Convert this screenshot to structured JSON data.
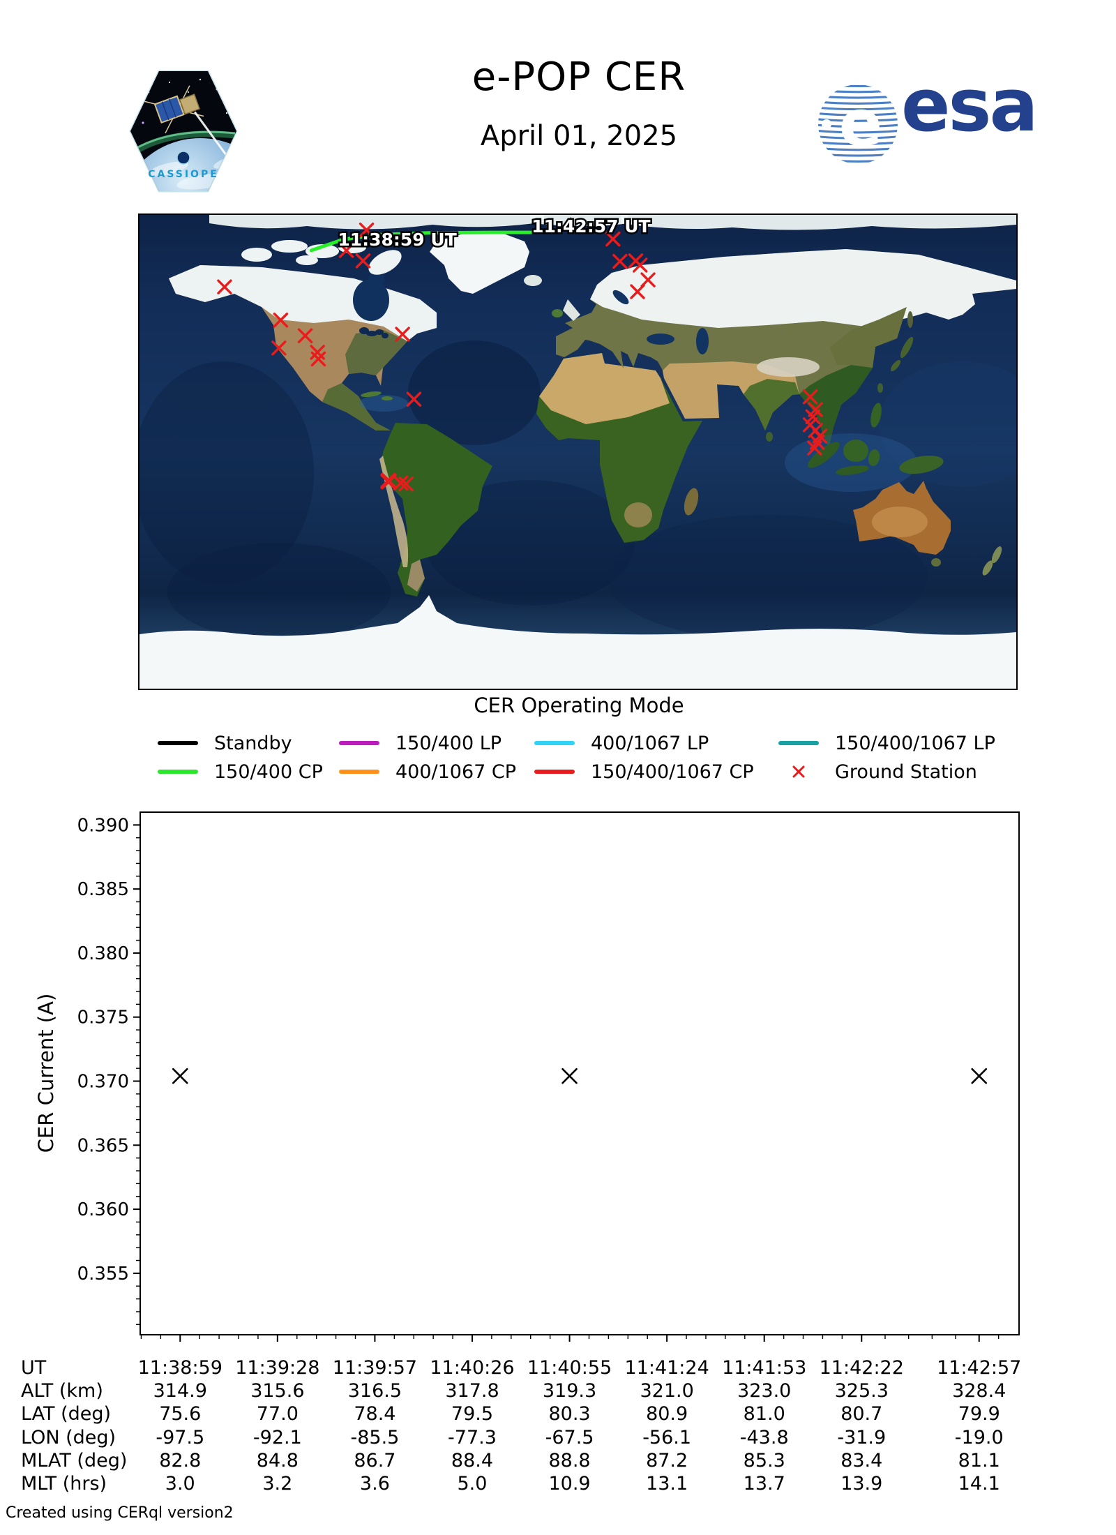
{
  "header": {
    "title": "e-POP CER",
    "date": "April 01, 2025",
    "esa_logo_text": "esa",
    "patch_text": "CASSIOPE"
  },
  "map": {
    "track_color": "#2bee2b",
    "track_points": [
      [
        0.196,
        0.075
      ],
      [
        0.232,
        0.052
      ],
      [
        0.27,
        0.042
      ],
      [
        0.33,
        0.038
      ],
      [
        0.4,
        0.037
      ],
      [
        0.447,
        0.037
      ]
    ],
    "track_labels": [
      {
        "text": "11:38:59 UT",
        "fx": 0.294,
        "fy": 0.0515
      },
      {
        "text": "11:42:57 UT",
        "fx": 0.515,
        "fy": 0.0235
      }
    ],
    "ground_station_color": "#e81c1c",
    "ground_stations": [
      {
        "fx": 0.259,
        "fy": 0.032
      },
      {
        "fx": 0.236,
        "fy": 0.075
      },
      {
        "fx": 0.255,
        "fy": 0.097
      },
      {
        "fx": 0.097,
        "fy": 0.152
      },
      {
        "fx": 0.161,
        "fy": 0.222
      },
      {
        "fx": 0.189,
        "fy": 0.255
      },
      {
        "fx": 0.159,
        "fy": 0.281
      },
      {
        "fx": 0.203,
        "fy": 0.29
      },
      {
        "fx": 0.204,
        "fy": 0.304
      },
      {
        "fx": 0.3,
        "fy": 0.252
      },
      {
        "fx": 0.313,
        "fy": 0.389
      },
      {
        "fx": 0.284,
        "fy": 0.562,
        "bold": true
      },
      {
        "fx": 0.298,
        "fy": 0.566
      },
      {
        "fx": 0.304,
        "fy": 0.568
      },
      {
        "fx": 0.54,
        "fy": 0.051
      },
      {
        "fx": 0.548,
        "fy": 0.098
      },
      {
        "fx": 0.566,
        "fy": 0.097
      },
      {
        "fx": 0.571,
        "fy": 0.106
      },
      {
        "fx": 0.58,
        "fy": 0.137
      },
      {
        "fx": 0.568,
        "fy": 0.162
      },
      {
        "fx": 0.765,
        "fy": 0.384
      },
      {
        "fx": 0.771,
        "fy": 0.411
      },
      {
        "fx": 0.768,
        "fy": 0.426
      },
      {
        "fx": 0.765,
        "fy": 0.443
      },
      {
        "fx": 0.771,
        "fy": 0.455
      },
      {
        "fx": 0.776,
        "fy": 0.467
      },
      {
        "fx": 0.773,
        "fy": 0.48
      },
      {
        "fx": 0.77,
        "fy": 0.492
      }
    ]
  },
  "legend": {
    "title": "CER Operating Mode",
    "items": [
      {
        "label": "Standby",
        "color": "#000000",
        "type": "line"
      },
      {
        "label": "150/400 LP",
        "color": "#bb1cbb",
        "type": "line"
      },
      {
        "label": "400/1067 LP",
        "color": "#2ed3f5",
        "type": "line"
      },
      {
        "label": "150/400/1067 LP",
        "color": "#16a2a2",
        "type": "line"
      },
      {
        "label": "150/400 CP",
        "color": "#2ce62c",
        "type": "line"
      },
      {
        "label": "400/1067 CP",
        "color": "#ff9019",
        "type": "line"
      },
      {
        "label": "150/400/1067 CP",
        "color": "#e81c1c",
        "type": "line"
      },
      {
        "label": "Ground Station",
        "color": "#e81c1c",
        "type": "marker"
      }
    ]
  },
  "chart_data": {
    "type": "scatter",
    "marker": "x",
    "marker_color": "#000000",
    "ylabel": "CER Current (A)",
    "ylim": [
      0.3502,
      0.391
    ],
    "yticks": [
      0.355,
      0.36,
      0.365,
      0.37,
      0.375,
      0.38,
      0.385,
      0.39
    ],
    "ytick_labels": [
      "0.355",
      "0.360",
      "0.365",
      "0.370",
      "0.375",
      "0.380",
      "0.385",
      "0.390"
    ],
    "y_minor_step": 0.001,
    "x_labels": [
      "11:38:59",
      "11:39:28",
      "11:39:57",
      "11:40:26",
      "11:40:55",
      "11:41:24",
      "11:41:53",
      "11:42:22",
      "11:42:57"
    ],
    "x_seconds": [
      0,
      29,
      58,
      87,
      116,
      145,
      174,
      203,
      238
    ],
    "xlim_seconds": [
      -11.9,
      249.9
    ],
    "points": [
      {
        "x_label": "11:38:59",
        "t": 0,
        "y": 0.3704
      },
      {
        "x_label": "11:40:55",
        "t": 116,
        "y": 0.3704
      },
      {
        "x_label": "11:42:57",
        "t": 238,
        "y": 0.3704
      }
    ],
    "grid": false,
    "legend_position": "below-map"
  },
  "table": {
    "rows": [
      {
        "label": "UT",
        "values": [
          "11:38:59",
          "11:39:28",
          "11:39:57",
          "11:40:26",
          "11:40:55",
          "11:41:24",
          "11:41:53",
          "11:42:22",
          "11:42:57"
        ]
      },
      {
        "label": "ALT (km)",
        "values": [
          "314.9",
          "315.6",
          "316.5",
          "317.8",
          "319.3",
          "321.0",
          "323.0",
          "325.3",
          "328.4"
        ]
      },
      {
        "label": "LAT (deg)",
        "values": [
          "75.6",
          "77.0",
          "78.4",
          "79.5",
          "80.3",
          "80.9",
          "81.0",
          "80.7",
          "79.9"
        ]
      },
      {
        "label": "LON (deg)",
        "values": [
          "-97.5",
          "-92.1",
          "-85.5",
          "-77.3",
          "-67.5",
          "-56.1",
          "-43.8",
          "-31.9",
          "-19.0"
        ]
      },
      {
        "label": "MLAT (deg)",
        "values": [
          "82.8",
          "84.8",
          "86.7",
          "88.4",
          "88.8",
          "87.2",
          "85.3",
          "83.4",
          "81.1"
        ]
      },
      {
        "label": "MLT (hrs)",
        "values": [
          "3.0",
          "3.2",
          "3.6",
          "5.0",
          "10.9",
          "13.1",
          "13.7",
          "13.9",
          "14.1"
        ]
      }
    ]
  },
  "footer": "Created using CERql version2"
}
